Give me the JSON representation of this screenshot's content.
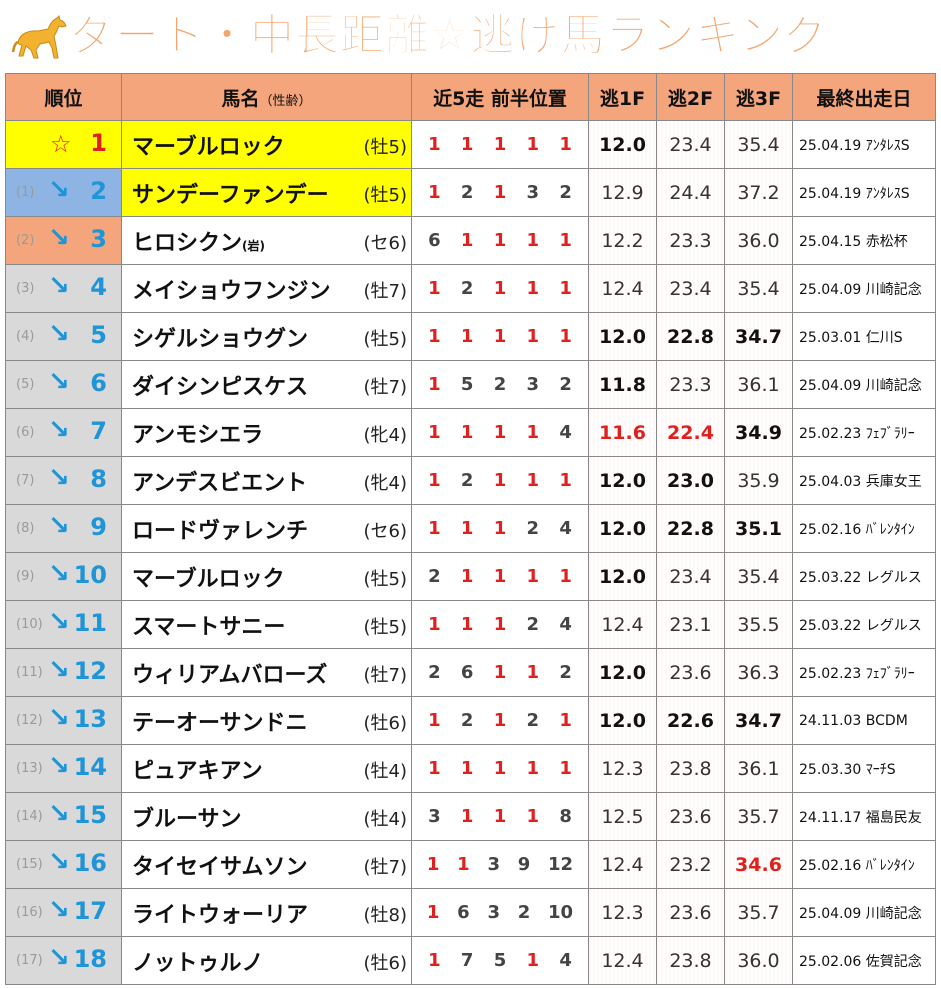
{
  "title": "ダート・中長距離☆逃げ馬ランキング",
  "icon": "horse-icon",
  "colors": {
    "header": "#f4a57c",
    "yellow": "#ffff00",
    "blue": "#8db4e2",
    "orange": "#f4a57c",
    "gray": "#d9d9d9",
    "red": "#e0201c",
    "cyan": "#1f94d6"
  },
  "headers": {
    "rank": "順位",
    "name": "馬名",
    "name_sub": "（性齢）",
    "pos": "近5走 前半位置",
    "f1": "逃1F",
    "f2": "逃2F",
    "f3": "逃3F",
    "last": "最終出走日"
  },
  "rows": [
    {
      "prev": "",
      "mark": "☆",
      "rank": "1",
      "name": "マーブルロック",
      "kako": "",
      "sexage": "(牡5)",
      "pos": [
        "1",
        "1",
        "1",
        "1",
        "1"
      ],
      "f1": "12.0",
      "f2": "23.4",
      "f3": "35.4",
      "date": "25.04.19 ｱﾝﾀﾚｽS"
    },
    {
      "prev": "(1)",
      "mark": "↘",
      "rank": "2",
      "name": "サンデーファンデー",
      "kako": "",
      "sexage": "(牡5)",
      "pos": [
        "1",
        "2",
        "1",
        "3",
        "2"
      ],
      "f1": "12.9",
      "f2": "24.4",
      "f3": "37.2",
      "date": "25.04.19 ｱﾝﾀﾚｽS"
    },
    {
      "prev": "(2)",
      "mark": "↘",
      "rank": "3",
      "name": "ヒロシクン",
      "kako": "(岩)",
      "sexage": "(セ6)",
      "pos": [
        "6",
        "1",
        "1",
        "1",
        "1"
      ],
      "f1": "12.2",
      "f2": "23.3",
      "f3": "36.0",
      "date": "25.04.15 赤松杯"
    },
    {
      "prev": "(3)",
      "mark": "↘",
      "rank": "4",
      "name": "メイショウフンジン",
      "kako": "",
      "sexage": "(牡7)",
      "pos": [
        "1",
        "2",
        "1",
        "1",
        "1"
      ],
      "f1": "12.4",
      "f2": "23.4",
      "f3": "35.4",
      "date": "25.04.09 川崎記念"
    },
    {
      "prev": "(4)",
      "mark": "↘",
      "rank": "5",
      "name": "シゲルショウグン",
      "kako": "",
      "sexage": "(牡5)",
      "pos": [
        "1",
        "1",
        "1",
        "1",
        "1"
      ],
      "f1": "12.0",
      "f2": "22.8",
      "f3": "34.7",
      "date": "25.03.01 仁川S"
    },
    {
      "prev": "(5)",
      "mark": "↘",
      "rank": "6",
      "name": "ダイシンピスケス",
      "kako": "",
      "sexage": "(牡7)",
      "pos": [
        "1",
        "5",
        "2",
        "3",
        "2"
      ],
      "f1": "11.8",
      "f2": "23.3",
      "f3": "36.1",
      "date": "25.04.09 川崎記念"
    },
    {
      "prev": "(6)",
      "mark": "↘",
      "rank": "7",
      "name": "アンモシエラ",
      "kako": "",
      "sexage": "(牝4)",
      "pos": [
        "1",
        "1",
        "1",
        "1",
        "4"
      ],
      "f1": "11.6",
      "f2": "22.4",
      "f3": "34.9",
      "date": "25.02.23 ﾌｪﾌﾞﾗﾘｰ"
    },
    {
      "prev": "(7)",
      "mark": "↘",
      "rank": "8",
      "name": "アンデスビエント",
      "kako": "",
      "sexage": "(牝4)",
      "pos": [
        "1",
        "2",
        "1",
        "1",
        "1"
      ],
      "f1": "12.0",
      "f2": "23.0",
      "f3": "35.9",
      "date": "25.04.03 兵庫女王"
    },
    {
      "prev": "(8)",
      "mark": "↘",
      "rank": "9",
      "name": "ロードヴァレンチ",
      "kako": "",
      "sexage": "(セ6)",
      "pos": [
        "1",
        "1",
        "1",
        "2",
        "4"
      ],
      "f1": "12.0",
      "f2": "22.8",
      "f3": "35.1",
      "date": "25.02.16 ﾊﾞﾚﾝﾀｲﾝ"
    },
    {
      "prev": "(9)",
      "mark": "↘",
      "rank": "10",
      "name": "マーブルロック",
      "kako": "",
      "sexage": "(牡5)",
      "pos": [
        "2",
        "1",
        "1",
        "1",
        "1"
      ],
      "f1": "12.0",
      "f2": "23.4",
      "f3": "35.4",
      "date": "25.03.22 レグルス"
    },
    {
      "prev": "(10)",
      "mark": "↘",
      "rank": "11",
      "name": "スマートサニー",
      "kako": "",
      "sexage": "(牡5)",
      "pos": [
        "1",
        "1",
        "1",
        "2",
        "4"
      ],
      "f1": "12.4",
      "f2": "23.1",
      "f3": "35.5",
      "date": "25.03.22 レグルス"
    },
    {
      "prev": "(11)",
      "mark": "↘",
      "rank": "12",
      "name": "ウィリアムバローズ",
      "kako": "",
      "sexage": "(牡7)",
      "pos": [
        "2",
        "6",
        "1",
        "1",
        "2"
      ],
      "f1": "12.0",
      "f2": "23.6",
      "f3": "36.3",
      "date": "25.02.23 ﾌｪﾌﾞﾗﾘｰ"
    },
    {
      "prev": "(12)",
      "mark": "↘",
      "rank": "13",
      "name": "テーオーサンドニ",
      "kako": "",
      "sexage": "(牡6)",
      "pos": [
        "1",
        "2",
        "1",
        "2",
        "1"
      ],
      "f1": "12.0",
      "f2": "22.6",
      "f3": "34.7",
      "date": "24.11.03 BCDM"
    },
    {
      "prev": "(13)",
      "mark": "↘",
      "rank": "14",
      "name": "ピュアキアン",
      "kako": "",
      "sexage": "(牡4)",
      "pos": [
        "1",
        "1",
        "1",
        "1",
        "1"
      ],
      "f1": "12.3",
      "f2": "23.8",
      "f3": "36.1",
      "date": "25.03.30 ﾏｰﾁS"
    },
    {
      "prev": "(14)",
      "mark": "↘",
      "rank": "15",
      "name": "ブルーサン",
      "kako": "",
      "sexage": "(牡4)",
      "pos": [
        "3",
        "1",
        "1",
        "1",
        "8"
      ],
      "f1": "12.5",
      "f2": "23.6",
      "f3": "35.7",
      "date": "24.11.17 福島民友"
    },
    {
      "prev": "(15)",
      "mark": "↘",
      "rank": "16",
      "name": "タイセイサムソン",
      "kako": "",
      "sexage": "(牡7)",
      "pos": [
        "1",
        "1",
        "3",
        "9",
        "12"
      ],
      "f1": "12.4",
      "f2": "23.2",
      "f3": "34.6",
      "date": "25.02.16 ﾊﾞﾚﾝﾀｲﾝ"
    },
    {
      "prev": "(16)",
      "mark": "↘",
      "rank": "17",
      "name": "ライトウォーリア",
      "kako": "",
      "sexage": "(牡8)",
      "pos": [
        "1",
        "6",
        "3",
        "2",
        "10"
      ],
      "f1": "12.3",
      "f2": "23.6",
      "f3": "35.7",
      "date": "25.04.09 川崎記念"
    },
    {
      "prev": "(17)",
      "mark": "↘",
      "rank": "18",
      "name": "ノットゥルノ",
      "kako": "",
      "sexage": "(牡6)",
      "pos": [
        "1",
        "7",
        "5",
        "1",
        "4"
      ],
      "f1": "12.4",
      "f2": "23.8",
      "f3": "36.0",
      "date": "25.02.06 佐賀記念"
    }
  ]
}
